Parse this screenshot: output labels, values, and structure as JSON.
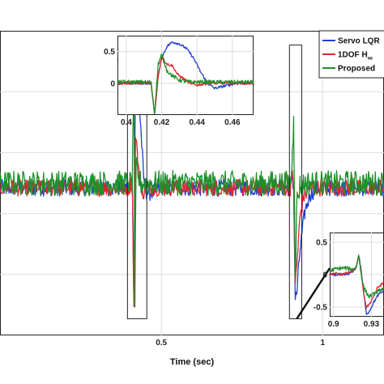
{
  "chart_data": [
    {
      "id": "main",
      "type": "line",
      "title": "",
      "xlabel": "Time (sec)",
      "ylabel": "",
      "xlim": [
        0,
        1.19
      ],
      "ylim": [
        -0.62,
        0.66
      ],
      "xticks": [
        0.5,
        1
      ],
      "grid": true,
      "legend": {
        "position": "top-right",
        "entries": [
          {
            "label": "Servo LQR",
            "sub": "",
            "color": "#1f3fcf"
          },
          {
            "label": "1DOF H",
            "sub": "∞",
            "color": "#e0262b"
          },
          {
            "label": "Proposed",
            "sub": "",
            "color": "#1f8f2a"
          }
        ]
      },
      "series": [
        {
          "name": "Servo LQR",
          "color": "#1f3fcf",
          "x": [
            0.0,
            0.4,
            0.41,
            0.415,
            0.42,
            0.428,
            0.436,
            0.445,
            0.455,
            0.47,
            0.5,
            0.9,
            0.905,
            0.91,
            0.915,
            0.92,
            0.93,
            0.945,
            0.96,
            0.98,
            1.19
          ],
          "y": [
            0.0,
            0.0,
            0.02,
            -0.47,
            0.57,
            0.42,
            0.26,
            0.04,
            -0.02,
            -0.02,
            0.0,
            0.0,
            0.06,
            0.0,
            -0.47,
            -0.44,
            -0.26,
            -0.1,
            -0.03,
            0.0,
            0.0
          ]
        },
        {
          "name": "1DOF H∞",
          "color": "#e0262b",
          "x": [
            0.0,
            0.4,
            0.41,
            0.415,
            0.42,
            0.426,
            0.432,
            0.44,
            0.45,
            0.5,
            0.9,
            0.905,
            0.91,
            0.915,
            0.92,
            0.93,
            0.94,
            0.96,
            1.19
          ],
          "y": [
            0.0,
            0.0,
            0.03,
            -0.5,
            0.21,
            0.14,
            0.05,
            -0.03,
            0.0,
            0.0,
            0.0,
            0.06,
            0.0,
            -0.4,
            -0.32,
            -0.12,
            -0.04,
            0.0,
            0.0
          ]
        },
        {
          "name": "Proposed",
          "color": "#1f8f2a",
          "x": [
            0.0,
            0.4,
            0.41,
            0.415,
            0.418,
            0.422,
            0.428,
            0.436,
            0.45,
            0.5,
            0.9,
            0.905,
            0.91,
            0.915,
            0.92,
            0.93,
            0.95,
            1.19
          ],
          "y": [
            0.02,
            0.02,
            0.02,
            0.5,
            -0.5,
            0.1,
            0.04,
            0.02,
            0.02,
            0.02,
            0.02,
            0.1,
            0.3,
            -0.38,
            -0.05,
            0.01,
            0.02,
            0.02
          ]
        }
      ],
      "zoom_boxes": [
        {
          "x": [
            0.395,
            0.455
          ],
          "y": [
            -0.55,
            0.62
          ]
        },
        {
          "x": [
            0.897,
            0.935
          ],
          "y": [
            -0.55,
            0.6
          ]
        }
      ]
    },
    {
      "id": "inset-top",
      "type": "line",
      "title": "",
      "xlim": [
        0.395,
        0.472
      ],
      "ylim": [
        -0.5,
        0.75
      ],
      "xticks": [
        0.4,
        0.42,
        0.44,
        0.46
      ],
      "xtick_labels": [
        "0.4",
        "0.42",
        "0.44",
        "0.46"
      ],
      "yticks": [
        0,
        0.5
      ],
      "ytick_labels": [
        "0",
        "0.5"
      ],
      "grid": true,
      "series": [
        {
          "name": "Servo LQR",
          "color": "#1f3fcf",
          "x": [
            0.395,
            0.414,
            0.416,
            0.418,
            0.42,
            0.423,
            0.426,
            0.43,
            0.434,
            0.438,
            0.442,
            0.446,
            0.45,
            0.456,
            0.462,
            0.472
          ],
          "y": [
            0.0,
            0.0,
            -0.48,
            0.1,
            0.4,
            0.58,
            0.65,
            0.62,
            0.55,
            0.4,
            0.18,
            0.0,
            -0.08,
            -0.04,
            0.0,
            0.0
          ]
        },
        {
          "name": "1DOF H∞",
          "color": "#e0262b",
          "x": [
            0.395,
            0.414,
            0.416,
            0.418,
            0.42,
            0.423,
            0.426,
            0.429,
            0.432,
            0.436,
            0.44,
            0.446,
            0.472
          ],
          "y": [
            0.0,
            0.0,
            -0.48,
            0.1,
            0.42,
            0.3,
            0.28,
            0.14,
            0.08,
            0.0,
            -0.03,
            0.0,
            0.0
          ]
        },
        {
          "name": "Proposed",
          "color": "#1f8f2a",
          "x": [
            0.395,
            0.414,
            0.416,
            0.418,
            0.42,
            0.423,
            0.426,
            0.43,
            0.436,
            0.44,
            0.472
          ],
          "y": [
            0.02,
            0.02,
            -0.48,
            0.3,
            0.45,
            0.2,
            0.12,
            0.05,
            0.02,
            0.02,
            0.02
          ]
        }
      ]
    },
    {
      "id": "inset-bottom",
      "type": "line",
      "title": "",
      "xlim": [
        0.897,
        0.94
      ],
      "ylim": [
        -0.65,
        0.65
      ],
      "xticks": [
        0.9,
        0.93
      ],
      "xtick_labels": [
        "0.9",
        "0.93"
      ],
      "yticks": [
        -0.5,
        0,
        0.5
      ],
      "ytick_labels": [
        "-0.5",
        "0",
        "0.5"
      ],
      "grid": true,
      "series": [
        {
          "name": "Servo LQR",
          "color": "#1f3fcf",
          "x": [
            0.897,
            0.906,
            0.91,
            0.915,
            0.918,
            0.92,
            0.922,
            0.924,
            0.926,
            0.928,
            0.932,
            0.936,
            0.94
          ],
          "y": [
            0.0,
            0.0,
            0.0,
            0.04,
            0.12,
            0.3,
            0.06,
            -0.3,
            -0.6,
            -0.58,
            -0.42,
            -0.3,
            -0.25
          ]
        },
        {
          "name": "1DOF H∞",
          "color": "#e0262b",
          "x": [
            0.897,
            0.902,
            0.906,
            0.91,
            0.915,
            0.918,
            0.92,
            0.922,
            0.924,
            0.926,
            0.93,
            0.935,
            0.94
          ],
          "y": [
            0.0,
            0.02,
            0.0,
            0.02,
            0.05,
            0.12,
            0.28,
            0.02,
            -0.3,
            -0.52,
            -0.4,
            -0.2,
            -0.12
          ]
        },
        {
          "name": "Proposed",
          "color": "#1f8f2a",
          "x": [
            0.897,
            0.9,
            0.905,
            0.91,
            0.915,
            0.918,
            0.92,
            0.922,
            0.924,
            0.928,
            0.932,
            0.936,
            0.94
          ],
          "y": [
            0.05,
            0.08,
            0.1,
            0.1,
            0.08,
            0.12,
            0.3,
            0.0,
            -0.2,
            -0.34,
            -0.3,
            -0.25,
            -0.2
          ]
        }
      ]
    }
  ]
}
